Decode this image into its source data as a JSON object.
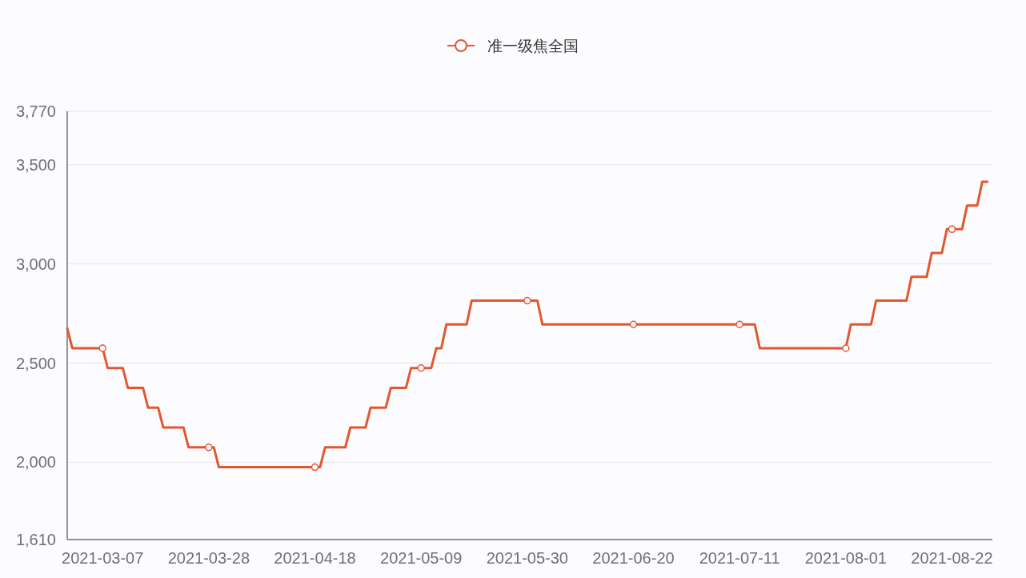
{
  "chart_data": {
    "type": "line",
    "x": [
      "2021-02-28",
      "2021-03-01",
      "2021-03-07",
      "2021-03-08",
      "2021-03-11",
      "2021-03-12",
      "2021-03-15",
      "2021-03-16",
      "2021-03-18",
      "2021-03-19",
      "2021-03-23",
      "2021-03-24",
      "2021-03-28",
      "2021-03-29",
      "2021-03-30",
      "2021-04-18",
      "2021-04-19",
      "2021-04-20",
      "2021-04-24",
      "2021-04-25",
      "2021-04-28",
      "2021-04-29",
      "2021-05-02",
      "2021-05-03",
      "2021-05-06",
      "2021-05-07",
      "2021-05-09",
      "2021-05-11",
      "2021-05-12",
      "2021-05-13",
      "2021-05-14",
      "2021-05-18",
      "2021-05-19",
      "2021-05-30",
      "2021-06-01",
      "2021-06-02",
      "2021-06-20",
      "2021-07-11",
      "2021-07-14",
      "2021-07-15",
      "2021-08-01",
      "2021-08-02",
      "2021-08-06",
      "2021-08-07",
      "2021-08-13",
      "2021-08-14",
      "2021-08-17",
      "2021-08-18",
      "2021-08-20",
      "2021-08-21",
      "2021-08-22",
      "2021-08-24",
      "2021-08-25",
      "2021-08-27",
      "2021-08-28",
      "2021-08-29"
    ],
    "series": [
      {
        "name": "准一级焦全国",
        "color": "#e4572e",
        "values": [
          2675,
          2575,
          2575,
          2475,
          2475,
          2375,
          2375,
          2275,
          2275,
          2175,
          2175,
          2075,
          2075,
          2075,
          1975,
          1975,
          1975,
          2075,
          2075,
          2175,
          2175,
          2275,
          2275,
          2375,
          2375,
          2475,
          2475,
          2475,
          2575,
          2575,
          2695,
          2695,
          2815,
          2815,
          2815,
          2695,
          2695,
          2695,
          2695,
          2575,
          2575,
          2695,
          2695,
          2815,
          2815,
          2935,
          2935,
          3055,
          3055,
          3175,
          3175,
          3175,
          3295,
          3295,
          3415,
          3415
        ]
      },
      {
        "type": "scatter",
        "color": "#e4572e",
        "marker": "circle",
        "x": [
          "2021-03-07",
          "2021-03-28",
          "2021-04-18",
          "2021-05-09",
          "2021-05-30",
          "2021-06-20",
          "2021-07-11",
          "2021-08-01",
          "2021-08-22"
        ],
        "values": [
          2575,
          2075,
          1975,
          2475,
          2815,
          2695,
          2695,
          2575,
          3175
        ]
      }
    ],
    "xlim": [
      "2021-02-28",
      "2021-08-30"
    ],
    "xticks": [
      "2021-03-07",
      "2021-03-28",
      "2021-04-18",
      "2021-05-09",
      "2021-05-30",
      "2021-06-20",
      "2021-07-11",
      "2021-08-01",
      "2021-08-22"
    ],
    "ylim": [
      1610,
      3770
    ],
    "yticks": [
      {
        "value": 1610,
        "label": "1,610"
      },
      {
        "value": 2000,
        "label": "2,000"
      },
      {
        "value": 2500,
        "label": "2,500"
      },
      {
        "value": 3000,
        "label": "3,000"
      },
      {
        "value": 3500,
        "label": "3,500"
      },
      {
        "value": 3770,
        "label": "3,770"
      }
    ],
    "grid": "y",
    "legend": "top",
    "line_style": "solid"
  }
}
